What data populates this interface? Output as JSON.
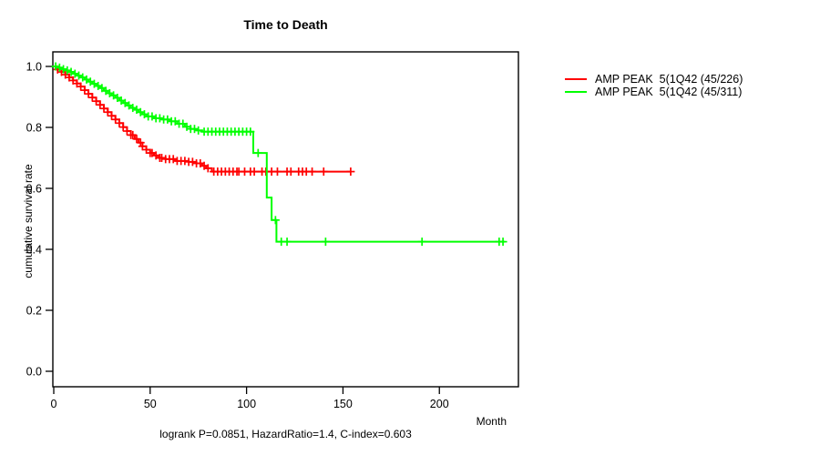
{
  "chart_data": {
    "type": "line",
    "subtype": "kaplan-meier-step-survival",
    "title": "Time to Death",
    "xlabel": "Month",
    "ylabel": "cumulative survival rate",
    "footnote": "logrank P=0.0851, HazardRatio=1.4, C-index=0.603",
    "xlim": [
      0,
      241
    ],
    "ylim": [
      0,
      1
    ],
    "xticks": {
      "values": [
        0,
        50,
        100,
        150,
        200
      ],
      "labels": [
        "0",
        "50",
        "100",
        "150",
        "200"
      ]
    },
    "yticks": {
      "values": [
        0,
        0.2,
        0.4,
        0.6,
        0.8,
        1
      ],
      "labels": [
        "0.0",
        "0.2",
        "0.4",
        "0.6",
        "0.8",
        "1.0"
      ]
    },
    "grid": false,
    "legend_position": "right-outside",
    "colors": {
      "axis": "#000000",
      "background": "#ffffff"
    },
    "censor_mark": "plus",
    "series": [
      {
        "name": "AMP PEAK  5(1Q42 (45/226)",
        "color": "#ff0000",
        "end_month": 154,
        "steps": [
          [
            0,
            1.0
          ],
          [
            1,
            0.995
          ],
          [
            2,
            0.99
          ],
          [
            4,
            0.982
          ],
          [
            6,
            0.973
          ],
          [
            8,
            0.964
          ],
          [
            10,
            0.954
          ],
          [
            12,
            0.944
          ],
          [
            14,
            0.934
          ],
          [
            16,
            0.922
          ],
          [
            18,
            0.91
          ],
          [
            20,
            0.898
          ],
          [
            22,
            0.886
          ],
          [
            24,
            0.874
          ],
          [
            26,
            0.862
          ],
          [
            28,
            0.85
          ],
          [
            30,
            0.838
          ],
          [
            32,
            0.826
          ],
          [
            34,
            0.814
          ],
          [
            36,
            0.801
          ],
          [
            38,
            0.788
          ],
          [
            40,
            0.775
          ],
          [
            42,
            0.762
          ],
          [
            44,
            0.75
          ],
          [
            46,
            0.738
          ],
          [
            48,
            0.727
          ],
          [
            50,
            0.716
          ],
          [
            52,
            0.708
          ],
          [
            54,
            0.7
          ],
          [
            58,
            0.696
          ],
          [
            63,
            0.69
          ],
          [
            70,
            0.687
          ],
          [
            74,
            0.682
          ],
          [
            77,
            0.674
          ],
          [
            79,
            0.666
          ],
          [
            82,
            0.655
          ]
        ],
        "censor_months": [
          2,
          4,
          6,
          8,
          10,
          12,
          14,
          16,
          18,
          20,
          22,
          24,
          26,
          28,
          30,
          32,
          34,
          36,
          38,
          40,
          41,
          43,
          45,
          46,
          48,
          50,
          51,
          53,
          55,
          56,
          58,
          60,
          62,
          64,
          66,
          68,
          70,
          72,
          74,
          76,
          78,
          80,
          83,
          85,
          87,
          89,
          91,
          93,
          95,
          96,
          99,
          102,
          104,
          108,
          110,
          113,
          116,
          121,
          123,
          127,
          129,
          131,
          134,
          140,
          154
        ]
      },
      {
        "name": "AMP PEAK  5(1Q42 (45/311)",
        "color": "#00ff00",
        "end_month": 234,
        "steps": [
          [
            0,
            1.0
          ],
          [
            2,
            0.996
          ],
          [
            4,
            0.991
          ],
          [
            6,
            0.987
          ],
          [
            8,
            0.982
          ],
          [
            10,
            0.976
          ],
          [
            12,
            0.97
          ],
          [
            14,
            0.964
          ],
          [
            16,
            0.957
          ],
          [
            18,
            0.95
          ],
          [
            20,
            0.943
          ],
          [
            22,
            0.936
          ],
          [
            24,
            0.929
          ],
          [
            26,
            0.92
          ],
          [
            28,
            0.912
          ],
          [
            30,
            0.905
          ],
          [
            32,
            0.897
          ],
          [
            34,
            0.888
          ],
          [
            36,
            0.88
          ],
          [
            38,
            0.872
          ],
          [
            40,
            0.864
          ],
          [
            42,
            0.858
          ],
          [
            44,
            0.85
          ],
          [
            46,
            0.843
          ],
          [
            48,
            0.836
          ],
          [
            52,
            0.83
          ],
          [
            56,
            0.826
          ],
          [
            60,
            0.82
          ],
          [
            64,
            0.812
          ],
          [
            68,
            0.802
          ],
          [
            71,
            0.795
          ],
          [
            74,
            0.79
          ],
          [
            77,
            0.786
          ],
          [
            103.5,
            0.716
          ],
          [
            110.5,
            0.57
          ],
          [
            113,
            0.496
          ],
          [
            115.5,
            0.425
          ]
        ],
        "censor_months": [
          1,
          3,
          5,
          7,
          9,
          11,
          13,
          15,
          17,
          19,
          21,
          23,
          25,
          27,
          29,
          31,
          33,
          35,
          37,
          39,
          41,
          43,
          45,
          47,
          49,
          51,
          53,
          55,
          57,
          59,
          61,
          63,
          65,
          67,
          69,
          71,
          73,
          75,
          78,
          80,
          82,
          84,
          86,
          88,
          90,
          92,
          94,
          96,
          98,
          100,
          102,
          106,
          115,
          118,
          121,
          141,
          191,
          231,
          233
        ]
      }
    ]
  }
}
